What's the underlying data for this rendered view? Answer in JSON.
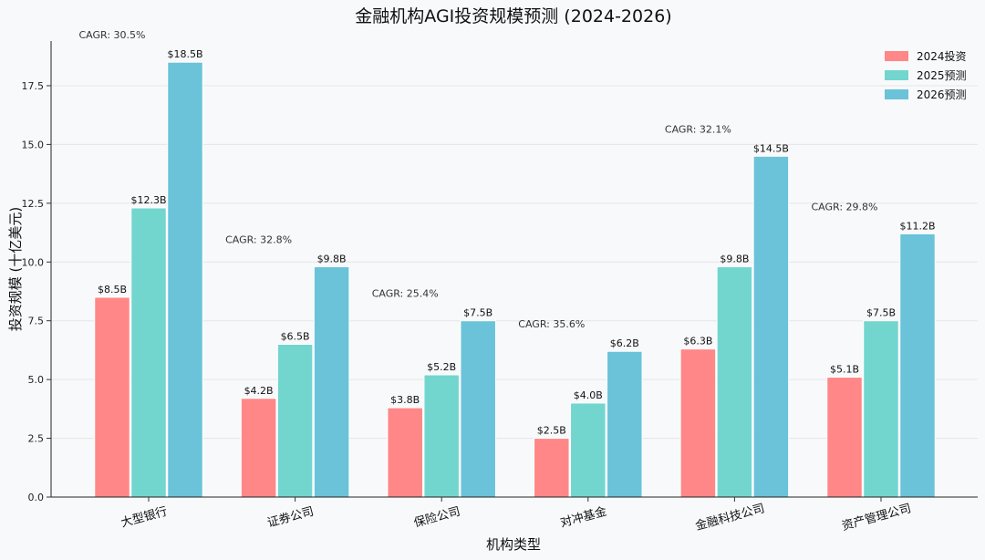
{
  "chart_data": {
    "type": "bar",
    "title": "金融机构AGI投资规模预测 (2024-2026)",
    "xlabel": "机构类型",
    "ylabel": "投资规模 (十亿美元)",
    "ylim": [
      0,
      19.4
    ],
    "yticks": [
      "0.0",
      "2.5",
      "5.0",
      "7.5",
      "10.0",
      "12.5",
      "15.0",
      "17.5"
    ],
    "categories": [
      "大型银行",
      "证券公司",
      "保险公司",
      "对冲基金",
      "金融科技公司",
      "资产管理公司"
    ],
    "series": [
      {
        "name": "2024投资",
        "values": [
          8.5,
          4.2,
          3.8,
          2.5,
          6.3,
          5.1
        ],
        "labels": [
          "$8.5B",
          "$4.2B",
          "$3.8B",
          "$2.5B",
          "$6.3B",
          "$5.1B"
        ],
        "color": "#ff8787"
      },
      {
        "name": "2025预测",
        "values": [
          12.3,
          6.5,
          5.2,
          4.0,
          9.8,
          7.5
        ],
        "labels": [
          "$12.3B",
          "$6.5B",
          "$5.2B",
          "$4.0B",
          "$9.8B",
          "$7.5B"
        ],
        "color": "#72d6cf"
      },
      {
        "name": "2026预测",
        "values": [
          18.5,
          9.8,
          7.5,
          6.2,
          14.5,
          11.2
        ],
        "labels": [
          "$18.5B",
          "$9.8B",
          "$7.5B",
          "$6.2B",
          "$14.5B",
          "$11.2B"
        ],
        "color": "#6ac3d9"
      }
    ],
    "cagr": [
      "CAGR: 30.5%",
      "CAGR: 32.8%",
      "CAGR: 25.4%",
      "CAGR: 35.6%",
      "CAGR: 32.1%",
      "CAGR: 29.8%"
    ],
    "legend_position": "top-right",
    "grid": true
  }
}
